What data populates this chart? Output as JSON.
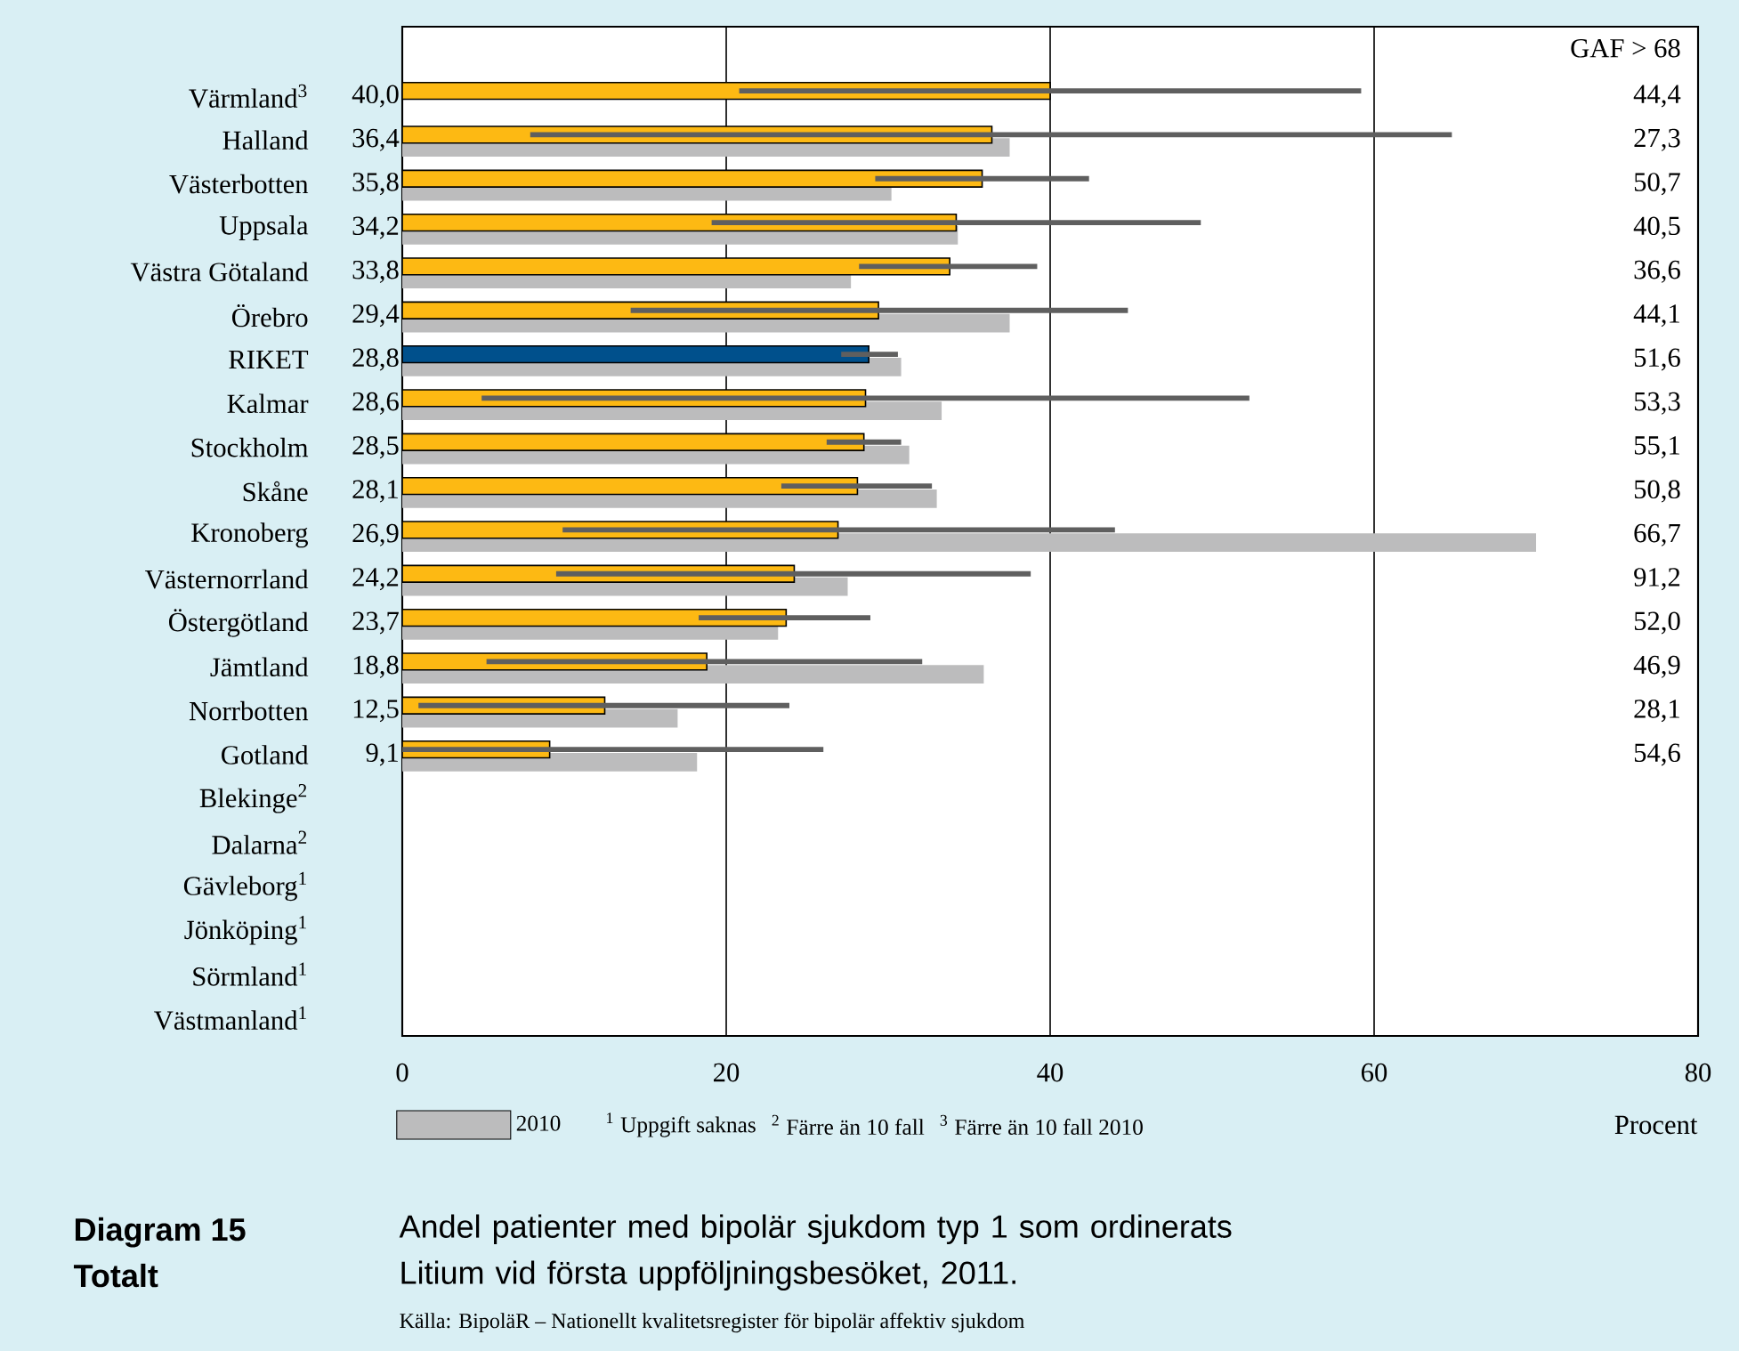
{
  "chart_data": {
    "type": "bar",
    "orientation": "horizontal",
    "title": "Andel patienter med bipolär sjukdom typ 1 som ordinerats Litium vid första uppföljningsbesöket, 2011.",
    "xlabel": "Procent",
    "categories": [
      "Värmland$^{3}$",
      "Halland",
      "Västerbotten",
      "Uppsala",
      "Västra Götaland",
      "Örebro",
      "RIKET",
      "Kalmar",
      "Stockholm",
      "Skåne",
      "Kronoberg",
      "Västernorrland",
      "Östergötland",
      "Jämtland",
      "Norrbotten",
      "Gotland",
      "Blekinge$^{2}$",
      "Dalarna$^{2}$",
      "Gävleborg$^{1}$",
      "Jönköping$^{1}$",
      "Sörmland$^{1}$",
      "Västmanland$^{1}$"
    ],
    "series": [
      {
        "values": [
          40.0,
          36.4,
          35.8,
          34.2,
          33.8,
          29.4,
          28.8,
          28.6,
          28.5,
          28.1,
          26.9,
          24.2,
          23.7,
          18.8,
          12.5,
          9.1,
          null,
          null,
          null,
          null,
          null,
          null
        ],
        "colors": [
          "#fdb913",
          "#fdb913",
          "#fdb913",
          "#fdb913",
          "#fdb913",
          "#fdb913",
          "#00508c",
          "#fdb913",
          "#fdb913",
          "#fdb913",
          "#fdb913",
          "#fdb913",
          "#fdb913",
          "#fdb913",
          "#fdb913",
          "#fdb913",
          "#fdb913",
          "#fdb913",
          "#fdb913",
          "#fdb913",
          "#fdb913",
          "#fdb913"
        ],
        "value_labels": [
          "40,0",
          "36,4",
          "35,8",
          "34,2",
          "33,8",
          "29,4",
          "28,8",
          "28,6",
          "28,5",
          "28,1",
          "26,9",
          "24,2",
          "23,7",
          "18,8",
          "12,5",
          "9,1",
          null,
          null,
          null,
          null,
          null,
          null
        ],
        "errors": [
          [
            20.8,
            59.2
          ],
          [
            7.9,
            64.8
          ],
          [
            29.2,
            42.4
          ],
          [
            19.1,
            49.3
          ],
          [
            28.2,
            39.2
          ],
          [
            14.1,
            44.8
          ],
          [
            27.1,
            30.6
          ],
          [
            4.9,
            52.3
          ],
          [
            26.2,
            30.8
          ],
          [
            23.4,
            32.7
          ],
          [
            9.9,
            44.0
          ],
          [
            9.5,
            38.8
          ],
          [
            18.3,
            28.9
          ],
          [
            5.2,
            32.1
          ],
          [
            1.0,
            23.9
          ],
          [
            0,
            26.0
          ],
          null,
          null,
          null,
          null,
          null,
          null
        ]
      },
      {
        "name": "2010",
        "color": "#bcbcbd",
        "values": [
          null,
          37.5,
          30.2,
          34.3,
          27.7,
          37.5,
          30.8,
          33.3,
          31.3,
          33.0,
          70.0,
          27.5,
          23.2,
          35.9,
          17.0,
          18.2,
          null,
          null,
          null,
          null,
          null,
          null
        ]
      }
    ],
    "xlim": [
      0,
      80
    ],
    "xticks": [
      0,
      20,
      40,
      60,
      80
    ],
    "grid": "x",
    "legend": "bottom",
    "annotations": [
      "GAF > 68",
      "44,4",
      "27,3",
      "50,7",
      "40,5",
      "36,6",
      "44,1",
      "51,6",
      "53,3",
      "55,1",
      "50,8",
      "66,7",
      "91,2",
      "52,0",
      "46,9",
      "28,1",
      "54,6",
      "$^{1}$ Uppgift saknas",
      "$^{2}$ Färre än 10 fall",
      "$^{3}$ Färre än 10 fall 2010",
      "Diagram 15",
      "Totalt",
      "Källa: BipoläR – Nationellt kvalitetsregister för bipolär affektiv sjukdom"
    ]
  }
}
